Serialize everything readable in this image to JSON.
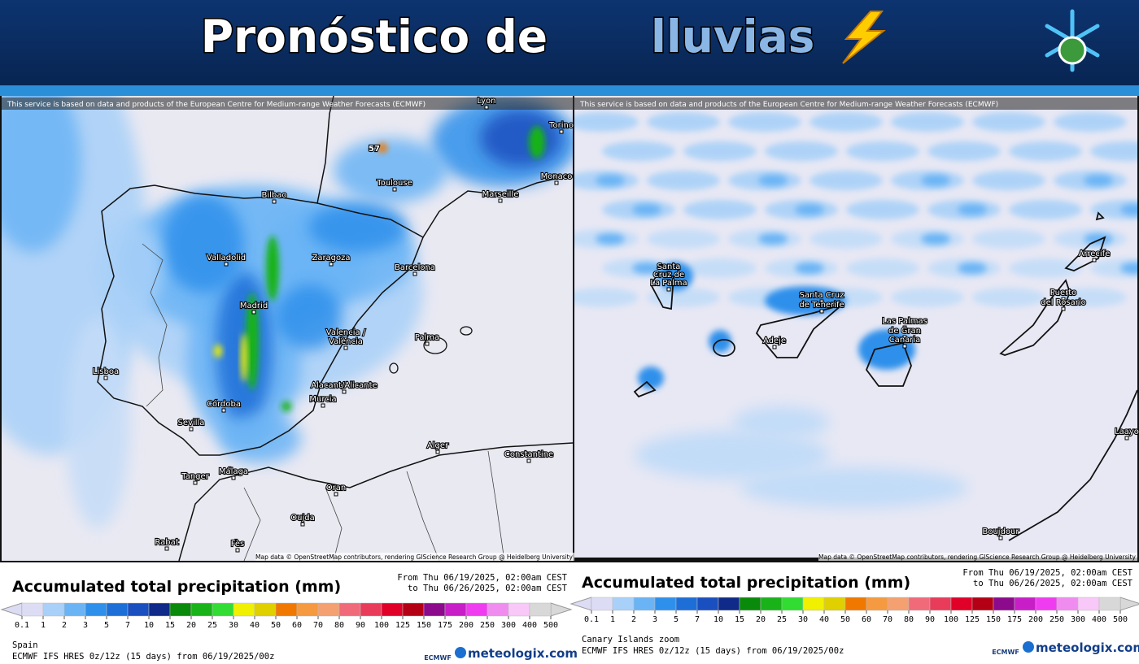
{
  "header": {
    "title": "Pronóstico de",
    "title_highlight": "lluvias"
  },
  "notice": "This service is based on data and products of the European Centre for Medium-range Weather Forecasts (ECMWF)",
  "attribution": "Map data © OpenStreetMap contributors, rendering GIScience Research Group @ Heidelberg University",
  "legend": {
    "title": "Accumulated total precipitation (mm)",
    "from": "From Thu 06/19/2025, 02:00am CEST",
    "to": "to Thu 06/26/2025, 02:00am CEST",
    "ticks": [
      0.1,
      1,
      2,
      3,
      5,
      7,
      10,
      15,
      20,
      25,
      30,
      40,
      50,
      60,
      70,
      80,
      90,
      100,
      125,
      150,
      175,
      200,
      250,
      300,
      400,
      500
    ],
    "colors": [
      "#dcdcf5",
      "#a8d0f8",
      "#6ab4f5",
      "#2f90eb",
      "#1e6ed8",
      "#1a4fc0",
      "#0f2a88",
      "#0a8a0a",
      "#19b319",
      "#32dc32",
      "#f0f000",
      "#e0d000",
      "#f07800",
      "#f59a40",
      "#f4a070",
      "#f06a7a",
      "#e83c5a",
      "#e00028",
      "#b40014",
      "#8c0a8c",
      "#c81ec8",
      "#f03cf0",
      "#f08cf0",
      "#f8c8f8",
      "#d8d8d8"
    ]
  },
  "model": "ECMWF IFS HRES 0z/12z (15 days) from 06/19/2025/00z",
  "logos": {
    "ecmwf": "ECMWF",
    "site": "meteologix.com"
  },
  "panels": [
    {
      "region": "Spain",
      "peak": "57",
      "places": [
        "Lyon",
        "Torino",
        "Toulouse",
        "Monaco",
        "Bilbao",
        "Marseille",
        "Valladolid",
        "Zaragoza",
        "Barcelona",
        "Madrid",
        "Valencia /",
        "València",
        "Palma",
        "Lisboa",
        "Alacant/Alicante",
        "Murcia",
        "Córdoba",
        "Sevilla",
        "Málaga",
        "Tanger",
        "Alger",
        "Constantine",
        "Oran",
        "Oujda",
        "Rabat",
        "Fès"
      ]
    },
    {
      "region": "Canary Islands zoom",
      "places": [
        "Santa",
        "Cruz de",
        "La Palma",
        "Santa Cruz",
        "de Tenerife",
        "Adeje",
        "Las Palmas",
        "de Gran",
        "Canaria",
        "Arrecife",
        "Puerto",
        "del Rosario",
        "Laayo",
        "Boujdour"
      ]
    }
  ]
}
